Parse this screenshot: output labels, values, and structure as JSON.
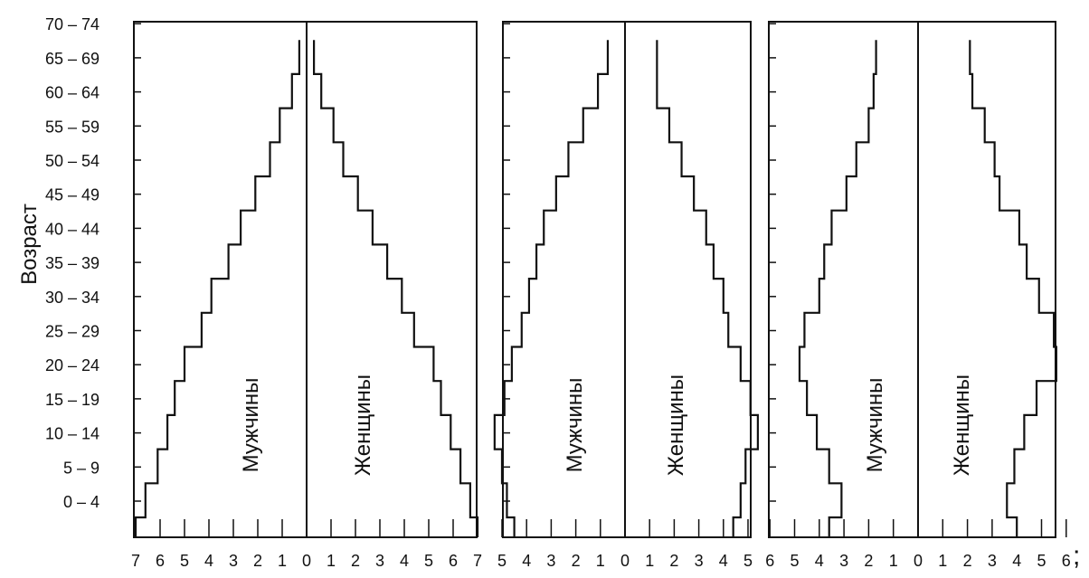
{
  "chart_data": {
    "type": "population-pyramid",
    "ylabel": "Возраст",
    "age_groups": [
      "0 – 4",
      "5 – 9",
      "10 – 14",
      "15 – 19",
      "20 – 24",
      "25 – 29",
      "30 – 34",
      "35 – 39",
      "40 – 44",
      "45 – 49",
      "50 – 54",
      "55 – 59",
      "60 – 64",
      "65 – 69",
      "70 – 74"
    ],
    "pyramids": [
      {
        "x_ticks_left": [
          "7",
          "6",
          "5",
          "4",
          "3",
          "2",
          "1"
        ],
        "x_ticks_right": [
          "0",
          "1",
          "2",
          "3",
          "4",
          "5",
          "6",
          "7"
        ],
        "xlim": 7,
        "left_label": "Мужчины",
        "right_label": "Женщины",
        "series": [
          {
            "name": "Мужчины",
            "values": [
              7.0,
              6.6,
              6.1,
              5.7,
              5.4,
              5.0,
              4.3,
              3.9,
              3.2,
              2.7,
              2.1,
              1.5,
              1.1,
              0.6,
              0.3
            ]
          },
          {
            "name": "Женщины",
            "values": [
              7.0,
              6.7,
              6.3,
              5.9,
              5.5,
              5.2,
              4.4,
              3.9,
              3.3,
              2.7,
              2.1,
              1.5,
              1.1,
              0.6,
              0.3
            ]
          }
        ]
      },
      {
        "x_ticks_left": [
          "5",
          "4",
          "3",
          "2",
          "1"
        ],
        "x_ticks_right": [
          "0",
          "1",
          "2",
          "3",
          "4",
          "5"
        ],
        "xlim": 5,
        "left_label": "Мужчины",
        "right_label": "Женщины",
        "series": [
          {
            "name": "Мужчины",
            "values": [
              4.5,
              4.8,
              5.0,
              5.3,
              4.9,
              4.6,
              4.2,
              3.9,
              3.6,
              3.3,
              2.8,
              2.3,
              1.7,
              1.1,
              0.7
            ]
          },
          {
            "name": "Женщины",
            "values": [
              4.4,
              4.7,
              4.9,
              5.4,
              5.1,
              4.7,
              4.2,
              4.0,
              3.6,
              3.3,
              2.8,
              2.3,
              1.8,
              1.3,
              1.3
            ]
          }
        ]
      },
      {
        "x_ticks_left": [
          "6",
          "5",
          "4",
          "3",
          "2",
          "1"
        ],
        "x_ticks_right": [
          "0",
          "1",
          "2",
          "3",
          "4",
          "5",
          "6"
        ],
        "xlim": 6,
        "left_label": "Мужчины",
        "right_label": "Женщины",
        "series": [
          {
            "name": "Мужчины",
            "values": [
              3.6,
              3.1,
              3.6,
              4.1,
              4.5,
              4.8,
              4.6,
              4.0,
              3.8,
              3.5,
              2.9,
              2.5,
              2.0,
              1.8,
              1.7
            ]
          },
          {
            "name": "Женщины",
            "values": [
              4.0,
              3.6,
              3.9,
              4.3,
              4.8,
              5.6,
              5.5,
              4.9,
              4.4,
              4.1,
              3.3,
              3.1,
              2.7,
              2.2,
              2.1
            ]
          }
        ]
      }
    ]
  },
  "trailing_mark": ";"
}
